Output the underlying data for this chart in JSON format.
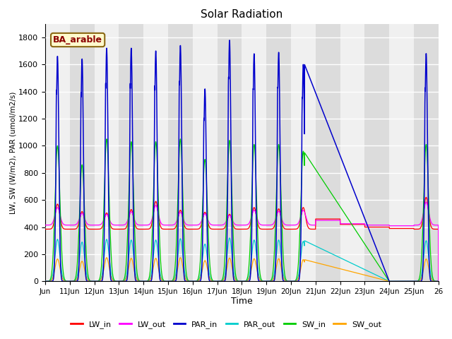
{
  "title": "Solar Radiation",
  "ylabel": "LW, SW (W/m2), PAR (umol/m2/s)",
  "xlabel": "Time",
  "annotation": "BA_arable",
  "annotation_color": "#8B0000",
  "annotation_bg": "#FFFACD",
  "annotation_border": "#8B6914",
  "ylim": [
    0,
    1900
  ],
  "yticks": [
    0,
    200,
    400,
    600,
    800,
    1000,
    1200,
    1400,
    1600,
    1800
  ],
  "colors": {
    "LW_in": "#FF0000",
    "LW_out": "#FF00FF",
    "PAR_in": "#0000CC",
    "PAR_out": "#00CCCC",
    "SW_in": "#00CC00",
    "SW_out": "#FFA500"
  },
  "bg_light": "#F0F0F0",
  "bg_dark": "#DCDCDC",
  "tick_labels": [
    "Jun",
    "11Jun",
    "12Jun",
    "13Jun",
    "14Jun",
    "15Jun",
    "16Jun",
    "17Jun",
    "18Jun",
    "19Jun",
    "20Jun",
    "21Jun",
    "22Jun",
    "23Jun",
    "24Jun",
    "25Jun",
    "26"
  ]
}
